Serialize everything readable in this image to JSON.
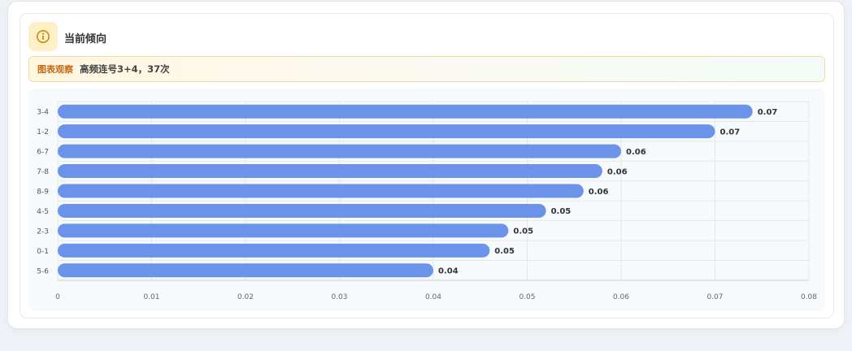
{
  "card": {
    "title": "当前倾向",
    "observation_tag": "图表观察",
    "observation_text": "高频连号3+4，37次",
    "icon": "info-icon"
  },
  "colors": {
    "bar": "#6b93ea",
    "icon_bg": "#fdefc6",
    "icon_fg": "#c98a12",
    "tag": "#c46a14",
    "grid": "#dfeaf0"
  },
  "chart_data": {
    "type": "bar",
    "orientation": "horizontal",
    "categories": [
      "3-4",
      "1-2",
      "6-7",
      "7-8",
      "8-9",
      "4-5",
      "2-3",
      "0-1",
      "5-6"
    ],
    "values": [
      0.074,
      0.07,
      0.06,
      0.058,
      0.056,
      0.052,
      0.048,
      0.046,
      0.04
    ],
    "value_labels": [
      "0.07",
      "0.07",
      "0.06",
      "0.06",
      "0.06",
      "0.05",
      "0.05",
      "0.05",
      "0.04"
    ],
    "xlim": [
      0,
      0.08
    ],
    "xticks": [
      "0",
      "0.01",
      "0.02",
      "0.03",
      "0.04",
      "0.05",
      "0.06",
      "0.07",
      "0.08"
    ],
    "grid": true,
    "title": "",
    "xlabel": "",
    "ylabel": ""
  }
}
